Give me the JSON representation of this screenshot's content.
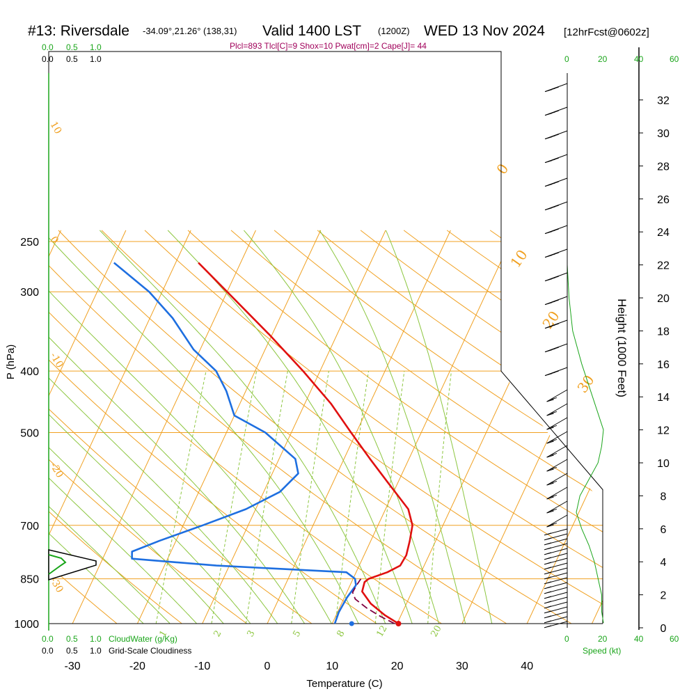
{
  "title": {
    "station": "#13: Riversdale",
    "coords": "-34.09°,21.26° (138,31)",
    "valid": "Valid 1400 LST",
    "zulu": "(1200Z)",
    "date": "WED 13 Nov 2024",
    "forecast": "[12hrFcst@0602z]"
  },
  "stats_line": "Plcl=893 Tlcl[C]=9 Shox=10 Pwat[cm]=2 Cape[J]= 44",
  "colors": {
    "temperature": "#e01010",
    "dewpoint": "#1e6fe0",
    "parcel": "#800040",
    "isotherm": "#f0a020",
    "dry_adiabat": "#f0a020",
    "moist_adiabat": "#8cc63f",
    "mixing_ratio": "#8cc63f",
    "cloud_water": "#1aa51a",
    "wind": "#000000"
  },
  "chart_data": {
    "type": "skew-t",
    "xlabel": "Temperature (C)",
    "ylabel": "P (hPa)",
    "right_label": "Height (1000 Feet)",
    "x_ticks": [
      "-30",
      "-20",
      "-10",
      "0",
      "10",
      "20",
      "30",
      "40"
    ],
    "pressure_ticks": [
      "250",
      "300",
      "400",
      "500",
      "700",
      "850",
      "1000"
    ],
    "height_ticks": [
      "0",
      "2",
      "4",
      "6",
      "8",
      "10",
      "12",
      "14",
      "16",
      "18",
      "20",
      "22",
      "24",
      "26",
      "28",
      "30",
      "32"
    ],
    "temperature_profile": [
      {
        "p": 1000,
        "t": 20.2
      },
      {
        "p": 970,
        "t": 17.5
      },
      {
        "p": 930,
        "t": 14.5
      },
      {
        "p": 890,
        "t": 12.3
      },
      {
        "p": 860,
        "t": 12.0
      },
      {
        "p": 850,
        "t": 12.4
      },
      {
        "p": 830,
        "t": 14.8
      },
      {
        "p": 810,
        "t": 16.3
      },
      {
        "p": 780,
        "t": 16.5
      },
      {
        "p": 740,
        "t": 16.0
      },
      {
        "p": 700,
        "t": 15.3
      },
      {
        "p": 660,
        "t": 13.5
      },
      {
        "p": 600,
        "t": 8.5
      },
      {
        "p": 550,
        "t": 4.0
      },
      {
        "p": 500,
        "t": -0.8
      },
      {
        "p": 450,
        "t": -6.0
      },
      {
        "p": 400,
        "t": -12.6
      },
      {
        "p": 350,
        "t": -20.5
      },
      {
        "p": 300,
        "t": -30.0
      },
      {
        "p": 270,
        "t": -36.5
      }
    ],
    "dewpoint_profile": [
      {
        "p": 1000,
        "t": 10.4
      },
      {
        "p": 960,
        "t": 10.2
      },
      {
        "p": 910,
        "t": 10.4
      },
      {
        "p": 870,
        "t": 10.9
      },
      {
        "p": 850,
        "t": 10.3
      },
      {
        "p": 830,
        "t": 8.5
      },
      {
        "p": 810,
        "t": -12.0
      },
      {
        "p": 790,
        "t": -25.5
      },
      {
        "p": 770,
        "t": -26.0
      },
      {
        "p": 740,
        "t": -22.5
      },
      {
        "p": 700,
        "t": -17.0
      },
      {
        "p": 660,
        "t": -11.5
      },
      {
        "p": 620,
        "t": -7.5
      },
      {
        "p": 580,
        "t": -6.0
      },
      {
        "p": 550,
        "t": -7.5
      },
      {
        "p": 500,
        "t": -14.0
      },
      {
        "p": 470,
        "t": -20.0
      },
      {
        "p": 430,
        "t": -23.0
      },
      {
        "p": 400,
        "t": -26.0
      },
      {
        "p": 370,
        "t": -31.0
      },
      {
        "p": 330,
        "t": -36.5
      },
      {
        "p": 300,
        "t": -42.0
      },
      {
        "p": 270,
        "t": -49.5
      }
    ],
    "parcel_profile": [
      {
        "p": 1000,
        "t": 19.6
      },
      {
        "p": 975,
        "t": 17.0
      },
      {
        "p": 945,
        "t": 14.2
      },
      {
        "p": 915,
        "t": 11.8
      },
      {
        "p": 893,
        "t": 10.9
      },
      {
        "p": 870,
        "t": 11.0
      },
      {
        "p": 850,
        "t": 11.2
      }
    ],
    "surface_dewpoint_marker": {
      "p": 1000,
      "t": 13.0
    },
    "surface_temperature_marker": {
      "p": 1000,
      "t": 20.2
    },
    "wind_speed_profile_kt": [
      {
        "h": 0.3,
        "s": 20
      },
      {
        "h": 1,
        "s": 19
      },
      {
        "h": 2,
        "s": 19
      },
      {
        "h": 3,
        "s": 17
      },
      {
        "h": 4,
        "s": 15
      },
      {
        "h": 5,
        "s": 12
      },
      {
        "h": 6,
        "s": 8
      },
      {
        "h": 7,
        "s": 5
      },
      {
        "h": 8,
        "s": 7
      },
      {
        "h": 9,
        "s": 12
      },
      {
        "h": 10,
        "s": 17
      },
      {
        "h": 11,
        "s": 19
      },
      {
        "h": 12,
        "s": 20
      },
      {
        "h": 14,
        "s": 14
      },
      {
        "h": 16,
        "s": 8
      },
      {
        "h": 18,
        "s": 3
      },
      {
        "h": 20,
        "s": 1
      },
      {
        "h": 22,
        "s": 0
      },
      {
        "h": 24,
        "s": 0
      }
    ],
    "cloud_water_bottom_scale": [
      "0.0",
      "0.5",
      "1.0"
    ],
    "cloudiness_scale": [
      "0.0",
      "0.5",
      "1.0"
    ],
    "cloud_water_label": "CloudWater (g/Kg)",
    "cloudiness_label": "Grid-Scale Cloudiness",
    "speed_scale": [
      "0",
      "20",
      "40",
      "60"
    ],
    "speed_label": "Speed (kt)",
    "mixing_ratio_labels": [
      "1",
      "2",
      "3",
      "5",
      "8",
      "12",
      "20"
    ],
    "isotherm_labels_left": [
      "10",
      "0",
      "-10",
      "-20",
      "-30"
    ],
    "isotherm_labels_right": [
      "0",
      "10",
      "20",
      "30"
    ]
  }
}
